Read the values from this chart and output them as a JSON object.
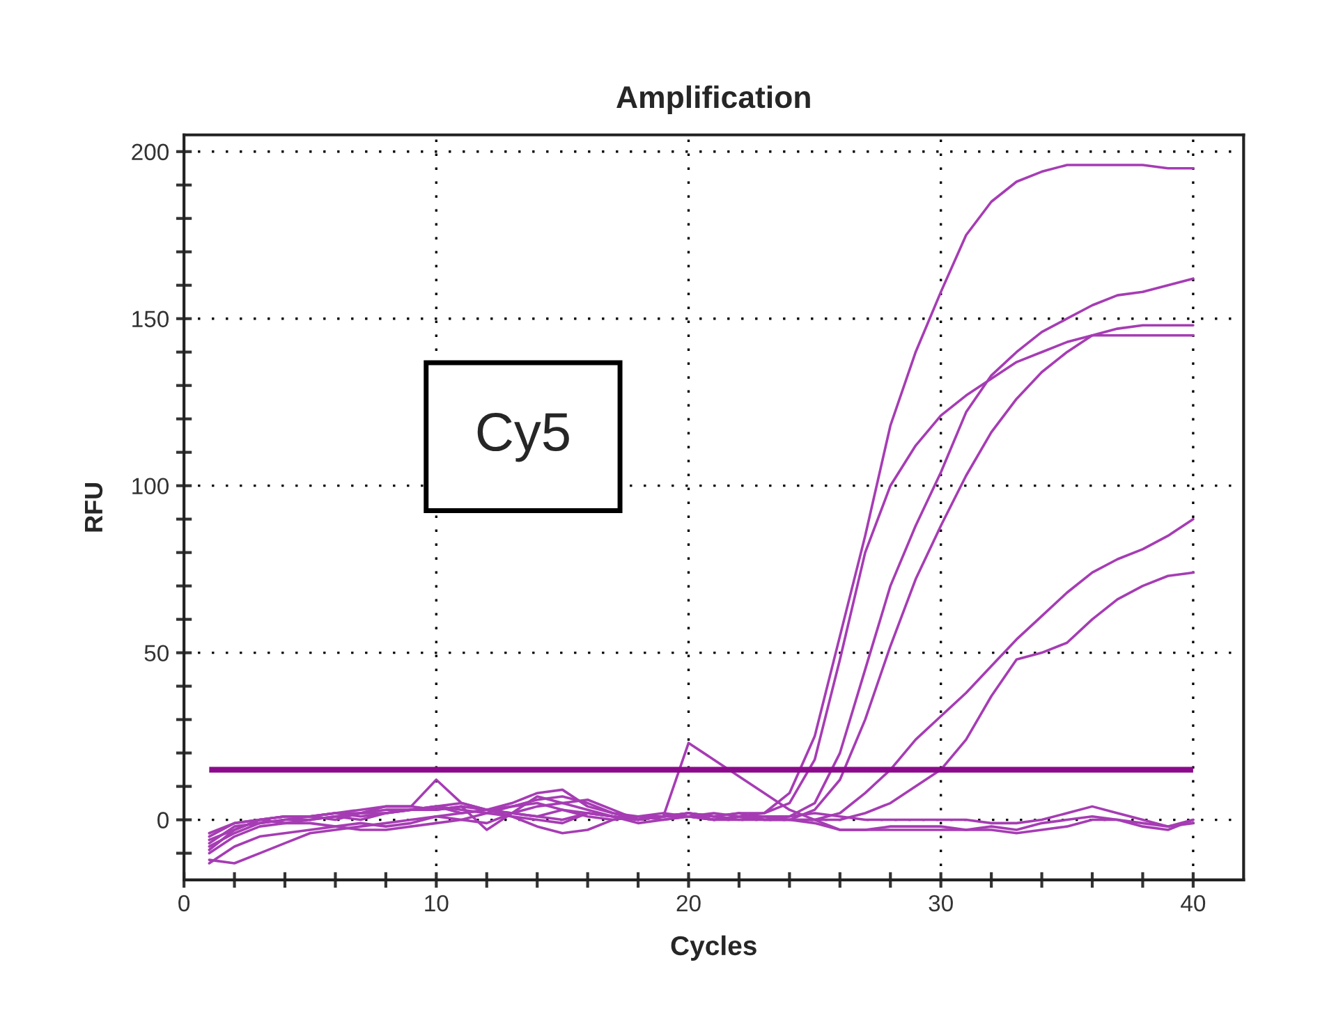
{
  "chart_data": {
    "type": "line",
    "title": "Amplification",
    "xlabel": "Cycles",
    "ylabel": "RFU",
    "x": [
      1,
      2,
      3,
      4,
      5,
      6,
      7,
      8,
      9,
      10,
      11,
      12,
      13,
      14,
      15,
      16,
      17,
      18,
      19,
      20,
      21,
      22,
      23,
      24,
      25,
      26,
      27,
      28,
      29,
      30,
      31,
      32,
      33,
      34,
      35,
      36,
      37,
      38,
      39,
      40
    ],
    "series": [
      {
        "color": "#a63cb4",
        "values": [
          -8,
          -4,
          -1,
          0,
          1,
          2,
          2,
          3,
          3,
          4,
          3,
          2,
          4,
          5,
          3,
          1,
          0,
          1,
          1,
          2,
          1,
          2,
          2,
          8,
          25,
          55,
          85,
          118,
          140,
          158,
          175,
          185,
          191,
          194,
          196,
          196,
          196,
          196,
          195,
          195
        ]
      },
      {
        "color": "#a63cb4",
        "values": [
          -10,
          -5,
          -2,
          -1,
          0,
          1,
          2,
          2,
          3,
          3,
          4,
          3,
          2,
          1,
          3,
          2,
          1,
          0,
          1,
          2,
          0,
          1,
          2,
          5,
          18,
          48,
          80,
          100,
          112,
          121,
          127,
          132,
          137,
          140,
          143,
          145,
          145,
          145,
          145,
          145
        ]
      },
      {
        "color": "#a63cb4",
        "values": [
          -6,
          -3,
          0,
          1,
          1,
          2,
          3,
          4,
          4,
          12,
          5,
          3,
          2,
          1,
          0,
          2,
          1,
          0,
          1,
          1,
          0,
          1,
          1,
          1,
          5,
          20,
          45,
          70,
          88,
          104,
          122,
          133,
          140,
          146,
          150,
          154,
          157,
          158,
          160,
          162
        ]
      },
      {
        "color": "#a63cb4",
        "values": [
          -12,
          -13,
          -10,
          -7,
          -4,
          -3,
          -2,
          -1,
          0,
          1,
          2,
          3,
          4,
          6,
          7,
          5,
          2,
          1,
          0,
          1,
          2,
          1,
          0,
          0,
          3,
          12,
          30,
          52,
          72,
          88,
          103,
          116,
          126,
          134,
          140,
          145,
          147,
          148,
          148,
          148
        ]
      },
      {
        "color": "#a63cb4",
        "values": [
          -13,
          -8,
          -5,
          -4,
          -3,
          -2,
          -1,
          -2,
          -1,
          1,
          0,
          2,
          1,
          -2,
          -4,
          -3,
          0,
          1,
          2,
          1,
          0,
          1,
          0,
          0,
          0,
          2,
          8,
          15,
          24,
          31,
          38,
          46,
          54,
          61,
          68,
          74,
          78,
          81,
          85,
          90
        ]
      },
      {
        "color": "#a63cb4",
        "values": [
          -9,
          -3,
          0,
          -1,
          -1,
          -2,
          -3,
          -3,
          -2,
          -1,
          0,
          -1,
          2,
          4,
          5,
          6,
          3,
          0,
          1,
          2,
          1,
          2,
          0,
          0,
          0,
          0,
          2,
          5,
          10,
          15,
          24,
          37,
          48,
          50,
          53,
          60,
          66,
          70,
          73,
          74
        ]
      },
      {
        "color": "#a63cb4",
        "values": [
          -5,
          -1,
          0,
          1,
          1,
          0,
          2,
          4,
          4,
          3,
          4,
          -3,
          2,
          7,
          5,
          3,
          1,
          0,
          1,
          23,
          18,
          13,
          8,
          3,
          0,
          -3,
          -3,
          -2,
          -2,
          -2,
          -3,
          -2,
          -3,
          -1,
          0,
          1,
          0,
          -1,
          -2,
          -1
        ]
      },
      {
        "color": "#a63cb4",
        "values": [
          -7,
          -2,
          -1,
          0,
          0,
          1,
          0,
          2,
          3,
          4,
          2,
          3,
          5,
          8,
          9,
          4,
          2,
          0,
          1,
          2,
          1,
          0,
          1,
          0,
          -1,
          -3,
          -3,
          -3,
          -3,
          -3,
          -3,
          -3,
          -4,
          -3,
          -2,
          0,
          0,
          -2,
          -3,
          0
        ]
      },
      {
        "color": "#a63cb4",
        "values": [
          -4,
          -1,
          0,
          1,
          1,
          2,
          1,
          2,
          3,
          4,
          5,
          3,
          1,
          0,
          -1,
          2,
          1,
          -1,
          0,
          1,
          0,
          0,
          0,
          1,
          2,
          1,
          0,
          0,
          0,
          0,
          0,
          -1,
          -1,
          0,
          2,
          4,
          2,
          0,
          -2,
          0
        ]
      }
    ],
    "ref_lines": [
      {
        "axis": "y",
        "value": 15,
        "color": "#8b0a8b"
      }
    ],
    "annotations": [
      "Cy5"
    ],
    "xlim": [
      0,
      42
    ],
    "ylim": [
      -18,
      205
    ],
    "xticks": [
      0,
      {
        "value": 2,
        "label": null
      },
      {
        "value": 4,
        "label": null
      },
      {
        "value": 6,
        "label": null
      },
      {
        "value": 8,
        "label": null
      },
      10,
      {
        "value": 12,
        "label": null
      },
      {
        "value": 14,
        "label": null
      },
      {
        "value": 16,
        "label": null
      },
      {
        "value": 18,
        "label": null
      },
      20,
      {
        "value": 22,
        "label": null
      },
      {
        "value": 24,
        "label": null
      },
      {
        "value": 26,
        "label": null
      },
      {
        "value": 28,
        "label": null
      },
      30,
      {
        "value": 32,
        "label": null
      },
      {
        "value": 34,
        "label": null
      },
      {
        "value": 36,
        "label": null
      },
      {
        "value": 38,
        "label": null
      },
      40
    ],
    "yticks": [
      {
        "value": -10,
        "label": null
      },
      0,
      {
        "value": 10,
        "label": null
      },
      {
        "value": 20,
        "label": null
      },
      {
        "value": 30,
        "label": null
      },
      {
        "value": 40,
        "label": null
      },
      50,
      {
        "value": 60,
        "label": null
      },
      {
        "value": 70,
        "label": null
      },
      {
        "value": 80,
        "label": null
      },
      {
        "value": 90,
        "label": null
      },
      100,
      {
        "value": 110,
        "label": null
      },
      {
        "value": 120,
        "label": null
      },
      {
        "value": 130,
        "label": null
      },
      {
        "value": 140,
        "label": null
      },
      150,
      {
        "value": 160,
        "label": null
      },
      {
        "value": 170,
        "label": null
      },
      {
        "value": 180,
        "label": null
      },
      {
        "value": 190,
        "label": null
      },
      200
    ],
    "grid": true
  }
}
